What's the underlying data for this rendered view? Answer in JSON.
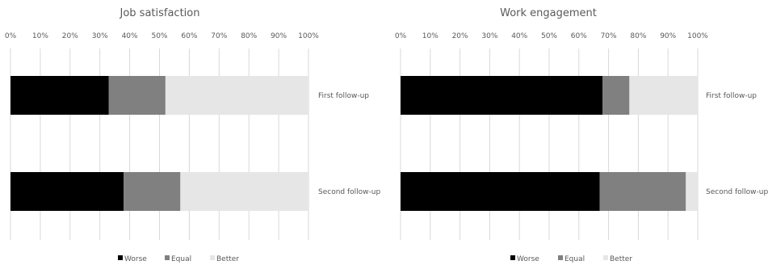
{
  "chart_data": [
    {
      "type": "bar",
      "stacked": "100%",
      "orientation": "horizontal",
      "title": "Job satisfaction",
      "categories": [
        "First follow-up",
        "Second follow-up"
      ],
      "series": [
        {
          "name": "Worse",
          "values": [
            33,
            38
          ],
          "color": "#000000"
        },
        {
          "name": "Equal",
          "values": [
            19,
            19
          ],
          "color": "#808080"
        },
        {
          "name": "Better",
          "values": [
            48,
            43
          ],
          "color": "#e6e6e6"
        }
      ],
      "xlim": [
        0,
        100
      ],
      "xticks": [
        "0%",
        "10%",
        "20%",
        "30%",
        "40%",
        "50%",
        "60%",
        "70%",
        "80%",
        "90%",
        "100%"
      ],
      "grid": true,
      "legend": "bottom"
    },
    {
      "type": "bar",
      "stacked": "100%",
      "orientation": "horizontal",
      "title": "Work engagement",
      "categories": [
        "First follow-up",
        "Second follow-up"
      ],
      "series": [
        {
          "name": "Worse",
          "values": [
            68,
            67
          ],
          "color": "#000000"
        },
        {
          "name": "Equal",
          "values": [
            9,
            29
          ],
          "color": "#808080"
        },
        {
          "name": "Better",
          "values": [
            23,
            4
          ],
          "color": "#e6e6e6"
        }
      ],
      "xlim": [
        0,
        100
      ],
      "xticks": [
        "0%",
        "10%",
        "20%",
        "30%",
        "40%",
        "50%",
        "60%",
        "70%",
        "80%",
        "90%",
        "100%"
      ],
      "grid": true,
      "legend": "bottom"
    }
  ]
}
